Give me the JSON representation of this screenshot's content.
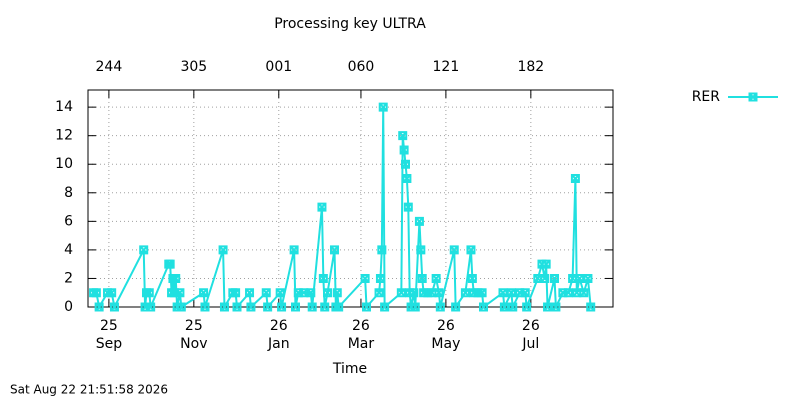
{
  "chart_data": {
    "type": "line",
    "title": "Processing key ULTRA",
    "xlabel": "Time",
    "footer": "Sat Aug 22 21:51:58 2026",
    "legend": "right",
    "grid": true,
    "ylim": [
      0,
      15.2
    ],
    "yticks": [
      0,
      2,
      4,
      6,
      8,
      10,
      12,
      14
    ],
    "xlim": [
      "2025-08-17",
      "2026-08-29"
    ],
    "xticks": [
      {
        "value": "2025-09-01",
        "label": [
          "25",
          "Sep"
        ]
      },
      {
        "value": "2025-11-01",
        "label": [
          "25",
          "Nov"
        ]
      },
      {
        "value": "2026-01-01",
        "label": [
          "26",
          "Jan"
        ]
      },
      {
        "value": "2026-03-01",
        "label": [
          "26",
          "Mar"
        ]
      },
      {
        "value": "2026-05-01",
        "label": [
          "26",
          "May"
        ]
      },
      {
        "value": "2026-07-01",
        "label": [
          "26",
          "Jul"
        ]
      }
    ],
    "x2ticks": [
      {
        "value": "2025-09-01",
        "label": "244"
      },
      {
        "value": "2025-11-01",
        "label": "305"
      },
      {
        "value": "2026-01-01",
        "label": "001"
      },
      {
        "value": "2026-03-01",
        "label": "060"
      },
      {
        "value": "2026-05-01",
        "label": "121"
      },
      {
        "value": "2026-07-01",
        "label": "182"
      }
    ],
    "x": [
      "2025-08-21",
      "2025-08-23",
      "2025-08-25",
      "2025-08-31",
      "2025-09-03",
      "2025-09-05",
      "2025-09-26",
      "2025-09-27",
      "2025-09-28",
      "2025-09-30",
      "2025-10-01",
      "2025-10-14",
      "2025-10-15",
      "2025-10-16",
      "2025-10-17",
      "2025-10-18",
      "2025-10-19",
      "2025-10-20",
      "2025-10-22",
      "2025-10-23",
      "2025-11-08",
      "2025-11-09",
      "2025-11-22",
      "2025-11-23",
      "2025-11-29",
      "2025-12-01",
      "2025-12-02",
      "2025-12-11",
      "2025-12-12",
      "2025-12-23",
      "2025-12-24",
      "2026-01-02",
      "2026-01-03",
      "2026-01-12",
      "2026-01-13",
      "2026-01-15",
      "2026-01-19",
      "2026-01-24",
      "2026-01-25",
      "2026-02-01",
      "2026-02-02",
      "2026-02-03",
      "2026-02-05",
      "2026-02-10",
      "2026-02-11",
      "2026-02-12",
      "2026-02-13",
      "2026-03-04",
      "2026-03-05",
      "2026-03-14",
      "2026-03-15",
      "2026-03-16",
      "2026-03-17",
      "2026-03-18",
      "2026-03-30",
      "2026-03-31",
      "2026-04-01",
      "2026-04-02",
      "2026-04-03",
      "2026-04-04",
      "2026-04-05",
      "2026-04-06",
      "2026-04-08",
      "2026-04-09",
      "2026-04-12",
      "2026-04-13",
      "2026-04-14",
      "2026-04-15",
      "2026-04-18",
      "2026-04-21",
      "2026-04-24",
      "2026-04-26",
      "2026-04-27",
      "2026-05-07",
      "2026-05-08",
      "2026-05-15",
      "2026-05-19",
      "2026-05-20",
      "2026-05-21",
      "2026-05-24",
      "2026-05-27",
      "2026-05-28",
      "2026-06-11",
      "2026-06-12",
      "2026-06-17",
      "2026-06-18",
      "2026-06-23",
      "2026-06-27",
      "2026-06-28",
      "2026-07-06",
      "2026-07-09",
      "2026-07-11",
      "2026-07-12",
      "2026-07-13",
      "2026-07-18",
      "2026-07-19",
      "2026-07-24",
      "2026-07-28",
      "2026-07-31",
      "2026-08-02",
      "2026-08-03",
      "2026-08-05",
      "2026-08-08",
      "2026-08-11",
      "2026-08-13"
    ],
    "series": [
      {
        "name": "RER",
        "color": "#20e0e0",
        "values": [
          1,
          1,
          0,
          1,
          1,
          0,
          4,
          0,
          1,
          1,
          0,
          3,
          3,
          1,
          2,
          1,
          2,
          0,
          1,
          0,
          1,
          0,
          4,
          0,
          1,
          1,
          0,
          1,
          0,
          1,
          0,
          1,
          0,
          4,
          0,
          1,
          1,
          1,
          0,
          7,
          2,
          0,
          1,
          4,
          0,
          1,
          0,
          2,
          0,
          1,
          2,
          4,
          14,
          0,
          1,
          12,
          11,
          10,
          9,
          7,
          1,
          0,
          1,
          0,
          6,
          4,
          2,
          1,
          1,
          1,
          2,
          1,
          0,
          4,
          0,
          1,
          4,
          2,
          1,
          1,
          1,
          0,
          1,
          0,
          1,
          0,
          1,
          1,
          0,
          2,
          3,
          2,
          3,
          0,
          2,
          0,
          1,
          1,
          2,
          9,
          1,
          2,
          1,
          2,
          0
        ]
      }
    ]
  }
}
